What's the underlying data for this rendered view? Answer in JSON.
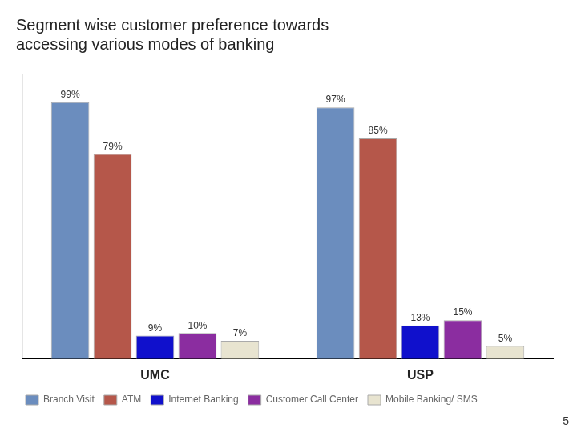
{
  "chart_data": {
    "type": "bar",
    "title": "Segment wise customer preference towards\naccessing various modes of banking",
    "categories": [
      "UMC",
      "USP"
    ],
    "series": [
      {
        "name": "Branch Visit",
        "color": "#6B8DBE",
        "values": [
          99,
          97
        ],
        "value_labels": [
          "99%",
          "97%"
        ]
      },
      {
        "name": "ATM",
        "color": "#B5574A",
        "values": [
          79,
          85
        ],
        "value_labels": [
          "79%",
          "85%"
        ]
      },
      {
        "name": "Internet Banking",
        "color": "#1010CC",
        "values": [
          9,
          13
        ],
        "value_labels": [
          "9%",
          "13%"
        ]
      },
      {
        "name": "Customer Call Center",
        "color": "#8B2DA0",
        "values": [
          10,
          15
        ],
        "value_labels": [
          "10%",
          "15%"
        ]
      },
      {
        "name": "Mobile Banking/ SMS",
        "color": "#E8E4D0",
        "values": [
          7,
          5
        ],
        "value_labels": [
          "7%",
          "5%"
        ]
      }
    ],
    "ylim": [
      0,
      110
    ],
    "tick_labels": "x",
    "grid": false,
    "legend": "bottom",
    "data_labels": true,
    "annotations": [
      "5"
    ]
  }
}
